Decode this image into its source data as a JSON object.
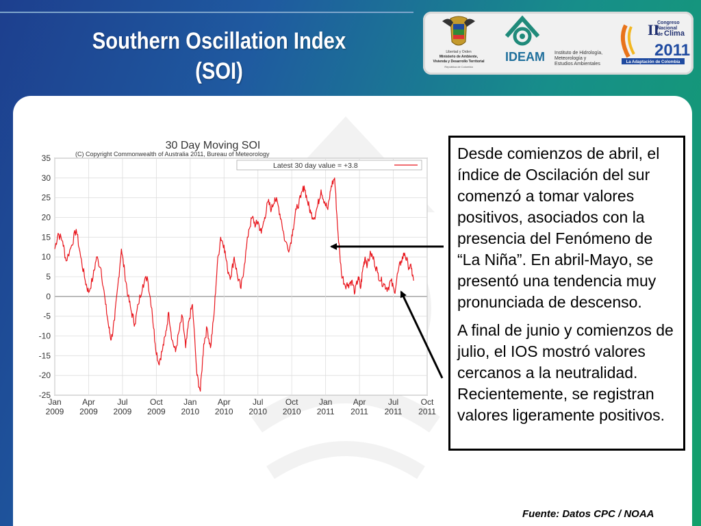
{
  "slide": {
    "title_line1": "Southern Oscillation Index",
    "title_line2": "(SOI)",
    "source": "Fuente:  Datos CPC / NOAA"
  },
  "logos": {
    "colombia_lines": [
      "Libertad y Orden",
      "Ministerio de Ambiente,",
      "Vivienda y Desarrollo Territorial",
      "República de Colombia"
    ],
    "ideam_name": "IDEAM",
    "ideam_desc": [
      "Instituto de Hidrología,",
      "Meteorología y",
      "Estudios Ambientales"
    ],
    "congreso_lines": [
      "II",
      "Congreso",
      "Nacional",
      "de",
      "Clima",
      "2011"
    ],
    "congreso_tagline": "La Adaptación de Colombia"
  },
  "textbox": {
    "p1": "Desde comienzos de abril, el índice de Oscilación del sur comenzó a tomar valores positivos, asociados con la presencia del Fenómeno de “La Niña”. En abril-Mayo, se presentó una tendencia muy pronunciada de descenso.",
    "p2": "A final de junio y comienzos de julio, el IOS mostró valores cercanos a la neutralidad. Recientemente, se registran valores ligeramente positivos."
  },
  "colors": {
    "series": "#e8141b",
    "accent_green": "#1e9e4e"
  },
  "chart_data": {
    "type": "line",
    "title": "30 Day Moving SOI",
    "subtitle": "(C) Copyright Commonwealth of Australia 2011, Bureau of Meteorology",
    "legend": "Latest 30 day value = +3.8",
    "legend_placement": "top-right",
    "grid": true,
    "ylim": [
      -25,
      35
    ],
    "yticks": [
      35,
      30,
      25,
      20,
      15,
      10,
      5,
      0,
      -5,
      -10,
      -15,
      -20,
      -25
    ],
    "xticks": [
      {
        "month": "Jan",
        "year": "2009",
        "pos": 0
      },
      {
        "month": "Apr",
        "year": "2009",
        "pos": 3
      },
      {
        "month": "Jul",
        "year": "2009",
        "pos": 6
      },
      {
        "month": "Oct",
        "year": "2009",
        "pos": 9
      },
      {
        "month": "Jan",
        "year": "2010",
        "pos": 12
      },
      {
        "month": "Apr",
        "year": "2010",
        "pos": 15
      },
      {
        "month": "Jul",
        "year": "2010",
        "pos": 18
      },
      {
        "month": "Oct",
        "year": "2010",
        "pos": 21
      },
      {
        "month": "Jan",
        "year": "2011",
        "pos": 24
      },
      {
        "month": "Apr",
        "year": "2011",
        "pos": 27
      },
      {
        "month": "Jul",
        "year": "2011",
        "pos": 30
      },
      {
        "month": "Oct",
        "year": "2011",
        "pos": 33
      }
    ],
    "xlim": [
      0,
      33
    ],
    "series": [
      {
        "x": [
          0,
          0.3,
          0.7,
          1.0,
          1.5,
          1.9,
          2.3,
          2.7,
          3.0,
          3.4,
          3.7,
          4.1,
          4.5,
          4.8,
          5.0,
          5.3,
          5.6,
          5.9,
          6.2,
          6.5,
          6.8,
          7.1,
          7.4,
          7.8,
          8.2,
          8.6,
          8.9,
          9.2,
          9.5,
          9.8,
          10.1,
          10.4,
          10.7,
          11.0,
          11.3,
          11.6,
          11.9,
          12.2,
          12.6,
          12.9,
          13.2,
          13.5,
          13.8,
          14.1,
          14.4,
          14.7,
          15.0,
          15.3,
          15.6,
          15.9,
          16.2,
          16.5,
          16.8,
          17.2,
          17.5,
          17.8,
          18.0,
          18.3,
          18.6,
          18.9,
          19.2,
          19.5,
          19.8,
          20.1,
          20.4,
          20.8,
          21.1,
          21.4,
          21.8,
          22.1,
          22.4,
          22.7,
          23.0,
          23.3,
          23.6,
          23.9,
          24.2,
          24.5,
          24.8,
          25.1,
          25.4,
          25.7,
          26.0,
          26.3,
          26.6,
          26.9,
          27.1,
          27.3,
          27.5,
          27.7,
          28.0,
          28.3,
          28.6,
          28.9,
          29.2,
          29.5,
          29.8,
          30.1,
          30.4,
          30.7,
          31.0,
          31.3,
          31.6,
          31.8
        ],
        "y": [
          12,
          16,
          14,
          9,
          13,
          17,
          10,
          4,
          1,
          5,
          10,
          7,
          -2,
          -8,
          -11,
          -6,
          3,
          12,
          6,
          0,
          -4,
          -7,
          -2,
          3,
          5,
          -3,
          -12,
          -17,
          -14,
          -10,
          -4,
          -11,
          -14,
          -9,
          -5,
          -13,
          -6,
          -2,
          -20,
          -24,
          -12,
          -8,
          -13,
          -5,
          8,
          15,
          13,
          7,
          5,
          10,
          5,
          2,
          8,
          17,
          20,
          18,
          19,
          16,
          20,
          24,
          22,
          25,
          23,
          19,
          14,
          12,
          17,
          22,
          25,
          28,
          24,
          21,
          20,
          23,
          27,
          24,
          22,
          28,
          30,
          16,
          6,
          3,
          3,
          4,
          1,
          5,
          2,
          7,
          10,
          8,
          11,
          9,
          6,
          4,
          3,
          2,
          4,
          1,
          6,
          9,
          11,
          8,
          7,
          4
        ]
      }
    ]
  }
}
